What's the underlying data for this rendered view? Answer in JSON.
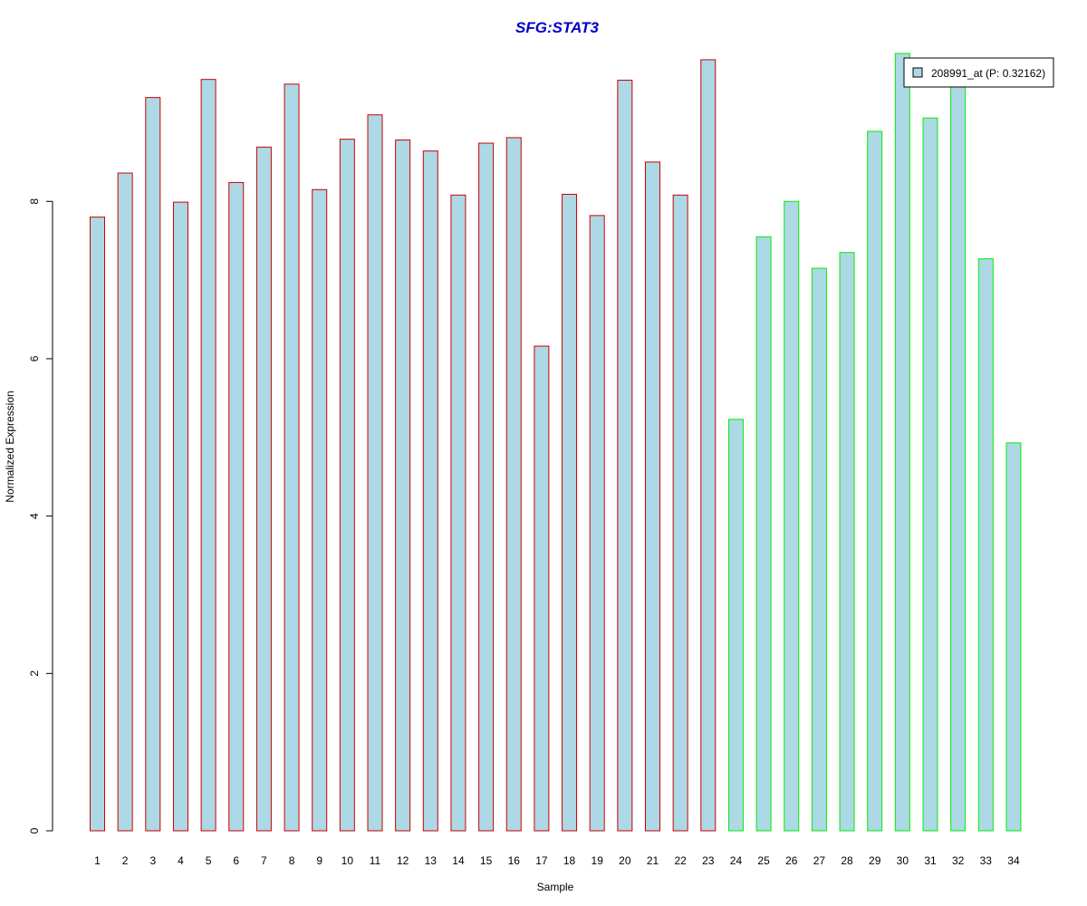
{
  "chart_data": {
    "type": "bar",
    "title": "SFG:STAT3",
    "title_color": "#0000CC",
    "xlabel": "Sample",
    "ylabel": "Normalized Expression",
    "categories": [
      "1",
      "2",
      "3",
      "4",
      "5",
      "6",
      "7",
      "8",
      "9",
      "10",
      "11",
      "12",
      "13",
      "14",
      "15",
      "16",
      "17",
      "18",
      "19",
      "20",
      "21",
      "22",
      "23",
      "24",
      "25",
      "26",
      "27",
      "28",
      "29",
      "30",
      "31",
      "32",
      "33",
      "34"
    ],
    "series": [
      {
        "name": "208991_at (P: 0.32162)",
        "values": [
          7.8,
          8.36,
          9.32,
          7.99,
          9.55,
          8.24,
          8.69,
          9.49,
          8.15,
          8.79,
          9.1,
          8.78,
          8.64,
          8.08,
          8.74,
          8.81,
          6.16,
          8.09,
          7.82,
          9.54,
          8.5,
          8.08,
          9.8,
          5.23,
          7.55,
          8.0,
          7.15,
          7.35,
          8.89,
          9.88,
          9.06,
          9.82,
          7.27,
          4.93
        ]
      }
    ],
    "bar_fill": "#ADD8E6",
    "group_colors": {
      "group1": "#CC0000",
      "group2": "#00EE00"
    },
    "group_split_index": 23,
    "yticks": [
      0,
      2,
      4,
      6,
      8
    ],
    "ylim": [
      0,
      9.88
    ],
    "legend": {
      "placement": "top-right",
      "label": "208991_at (P: 0.32162)"
    }
  }
}
